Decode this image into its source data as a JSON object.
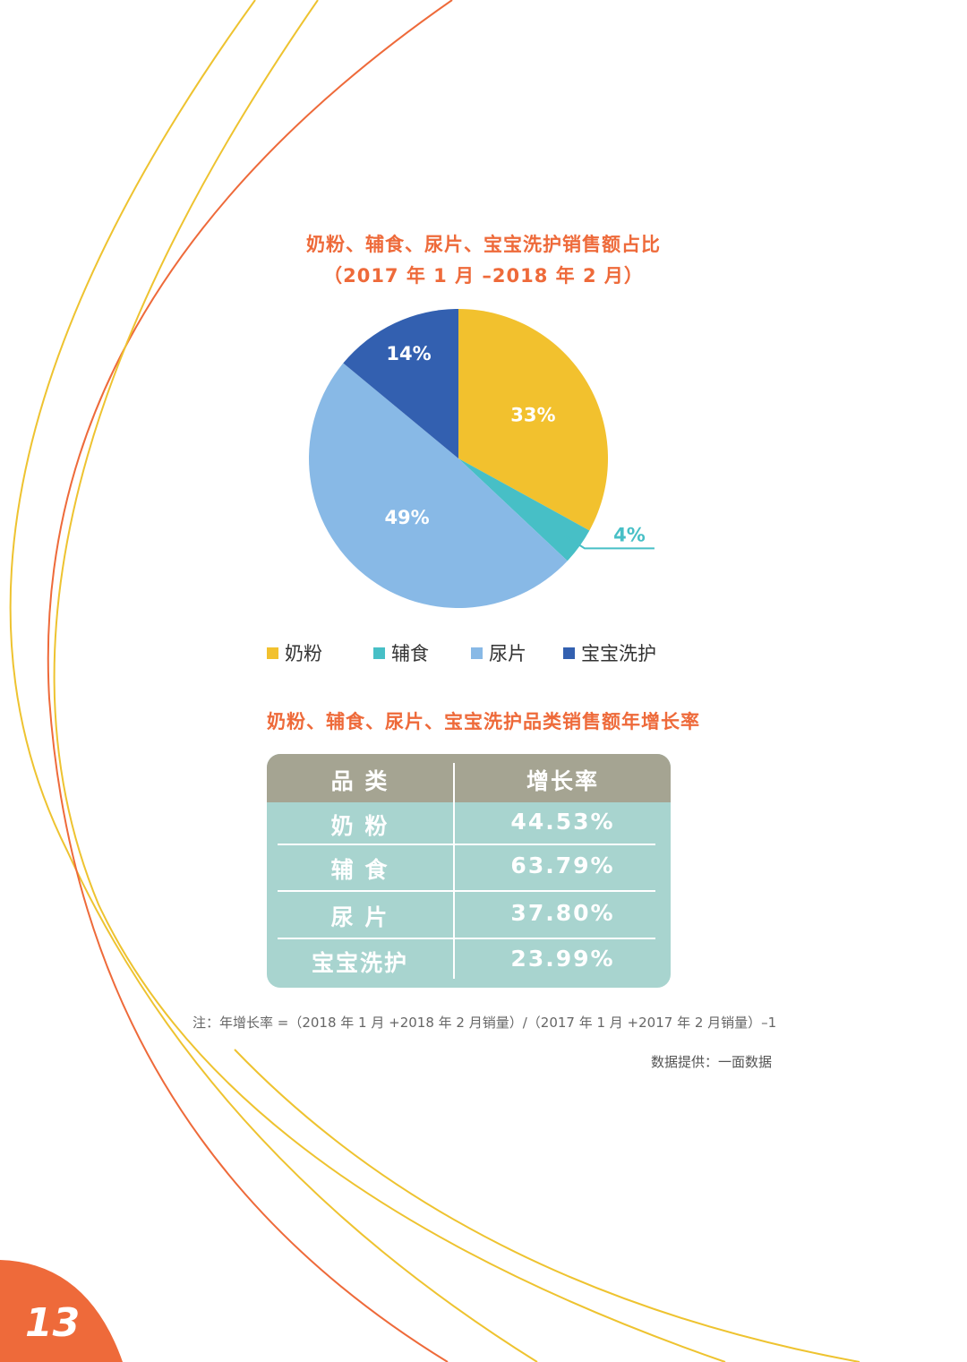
{
  "pie_title_line1": "奶粉、辅食、尿片、宝宝洗护销售额占比",
  "pie_title_line2": "（2017 年 1 月 –2018 年 2 月）",
  "chart_data": [
    {
      "type": "pie",
      "title": "奶粉、辅食、尿片、宝宝洗护销售额占比",
      "subtitle": "（2017 年 1 月 –2018 年 2 月）",
      "legend_position": "bottom",
      "slices": [
        {
          "name": "奶粉",
          "value": 33,
          "label": "33%",
          "color": "#f2c12e"
        },
        {
          "name": "辅食",
          "value": 4,
          "label": "4%",
          "color": "#47bfc6"
        },
        {
          "name": "尿片",
          "value": 49,
          "label": "49%",
          "color": "#88b9e6"
        },
        {
          "name": "宝宝洗护",
          "value": 14,
          "label": "14%",
          "color": "#3360b0"
        }
      ]
    },
    {
      "type": "table",
      "title": "奶粉、辅食、尿片、宝宝洗护品类销售额年增长率",
      "columns": [
        "品 类",
        "增长率"
      ],
      "rows": [
        [
          "奶 粉",
          "44.53%"
        ],
        [
          "辅 食",
          "63.79%"
        ],
        [
          "尿 片",
          "37.80%"
        ],
        [
          "宝宝洗护",
          "23.99%"
        ]
      ]
    }
  ],
  "note": "注：年增长率 =（2018 年 1 月 +2018 年 2 月销量）/（2017 年 1 月 +2017 年 2 月销量）–1",
  "source": "数据提供：一面数据",
  "page_number": "13",
  "colors": {
    "accent": "#ee6a3a",
    "arc_yellow": "#eec330",
    "table_header": "#a5a492",
    "table_body": "#a8d4cf"
  }
}
